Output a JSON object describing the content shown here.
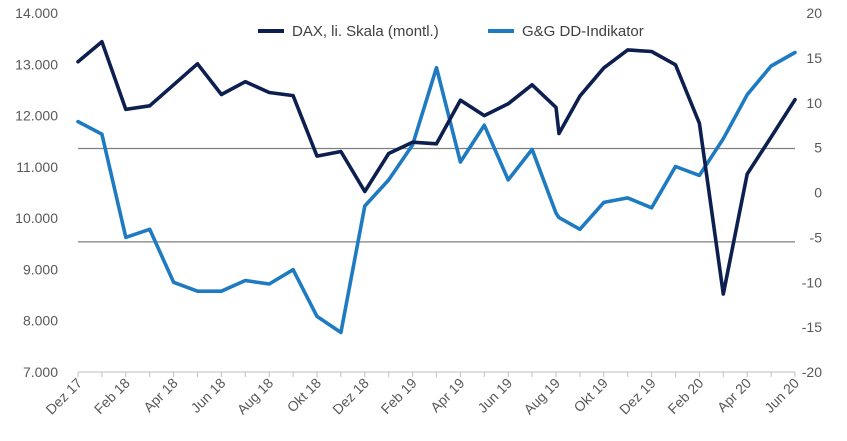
{
  "chart_data": {
    "type": "line",
    "title": "",
    "colors": {
      "dax": "#0d1f4f",
      "gg": "#1f7bc1",
      "refline": "#7f7f7f",
      "axis": "#bfbfbf"
    },
    "x_tick_labels": [
      "Dez 17",
      "Feb 18",
      "Apr 18",
      "Jun 18",
      "Aug 18",
      "Okt 18",
      "Dez 18",
      "Feb 19",
      "Apr 19",
      "Jun 19",
      "Aug 19",
      "Okt 19",
      "Dez 19",
      "Feb 20",
      "Apr 20",
      "Jun 20"
    ],
    "y_left": {
      "min": 7000,
      "max": 14000,
      "ticks": [
        "14.000",
        "13.000",
        "12.000",
        "11.000",
        "10.000",
        "9.000",
        "8.000",
        "7.000"
      ]
    },
    "y_right": {
      "min": -20,
      "max": 20,
      "ticks": [
        "20",
        "15",
        "10",
        "5",
        "0",
        "-5",
        "-10",
        "-15",
        "-20"
      ]
    },
    "reference_lines_right_axis": [
      4.9,
      -5.5
    ],
    "series": [
      {
        "name": "DAX, li. Skala (montl.)",
        "axis": "left",
        "points": [
          [
            "Dez 17",
            13050
          ],
          [
            "Jan 18",
            13440
          ],
          [
            "Feb 18",
            12120
          ],
          [
            "Mar 18",
            12190
          ],
          [
            "Apr 18",
            12600
          ],
          [
            "Mai 18",
            13010
          ],
          [
            "Jun 18",
            12410
          ],
          [
            "Jul 18",
            12660
          ],
          [
            "Aug 18",
            12450
          ],
          [
            "Sep 18",
            12390
          ],
          [
            "Okt 18",
            11210
          ],
          [
            "Nov 18",
            11300
          ],
          [
            "Dez 18",
            10520
          ],
          [
            "Jan 19",
            11260
          ],
          [
            "Feb 19",
            11480
          ],
          [
            "Mar 19",
            11450
          ],
          [
            "Apr 19",
            12300
          ],
          [
            "Mai 19",
            12000
          ],
          [
            "Jun 19",
            12230
          ],
          [
            "Jul 19",
            12600
          ],
          [
            "Aug 19",
            12160
          ],
          [
            "Aug 19",
            11650
          ],
          [
            "Sep 19",
            12380
          ],
          [
            "Okt 19",
            12930
          ],
          [
            "Nov 19",
            13280
          ],
          [
            "Dez 19",
            13250
          ],
          [
            "Jan 20",
            12990
          ],
          [
            "Feb 20",
            11850
          ],
          [
            "Mar 20",
            8520
          ],
          [
            "Apr 20",
            10860
          ],
          [
            "Mai 20",
            11580
          ],
          [
            "Jun 20",
            12310
          ]
        ]
      },
      {
        "name": "G&G DD-Indikator",
        "axis": "right",
        "points": [
          [
            "Dez 17",
            7.9
          ],
          [
            "Jan 18",
            6.5
          ],
          [
            "Feb 18",
            -5.0
          ],
          [
            "Mar 18",
            -4.1
          ],
          [
            "Apr 18",
            -10.0
          ],
          [
            "Mai 18",
            -11.0
          ],
          [
            "Jun 18",
            -11.0
          ],
          [
            "Jul 18",
            -9.8
          ],
          [
            "Aug 18",
            -10.2
          ],
          [
            "Sep 18",
            -8.6
          ],
          [
            "Okt 18",
            -13.8
          ],
          [
            "Nov 18",
            -15.6
          ],
          [
            "Dez 18",
            -1.5
          ],
          [
            "Jan 19",
            1.4
          ],
          [
            "Feb 19",
            5.3
          ],
          [
            "Mar 19",
            13.9
          ],
          [
            "Apr 19",
            3.4
          ],
          [
            "Mai 19",
            7.5
          ],
          [
            "Jun 19",
            1.4
          ],
          [
            "Jul 19",
            4.8
          ],
          [
            "Aug 19",
            -2.3
          ],
          [
            "Aug 19",
            -2.8
          ],
          [
            "Sep 19",
            -4.1
          ],
          [
            "Okt 19",
            -1.1
          ],
          [
            "Nov 19",
            -0.6
          ],
          [
            "Dez 19",
            -1.7
          ],
          [
            "Jan 20",
            2.9
          ],
          [
            "Feb 20",
            1.9
          ],
          [
            "Mar 20",
            6.0
          ],
          [
            "Apr 20",
            10.9
          ],
          [
            "Mai 20",
            14.1
          ],
          [
            "Jun 20",
            15.6
          ]
        ]
      }
    ],
    "legend_position": "top-center"
  }
}
